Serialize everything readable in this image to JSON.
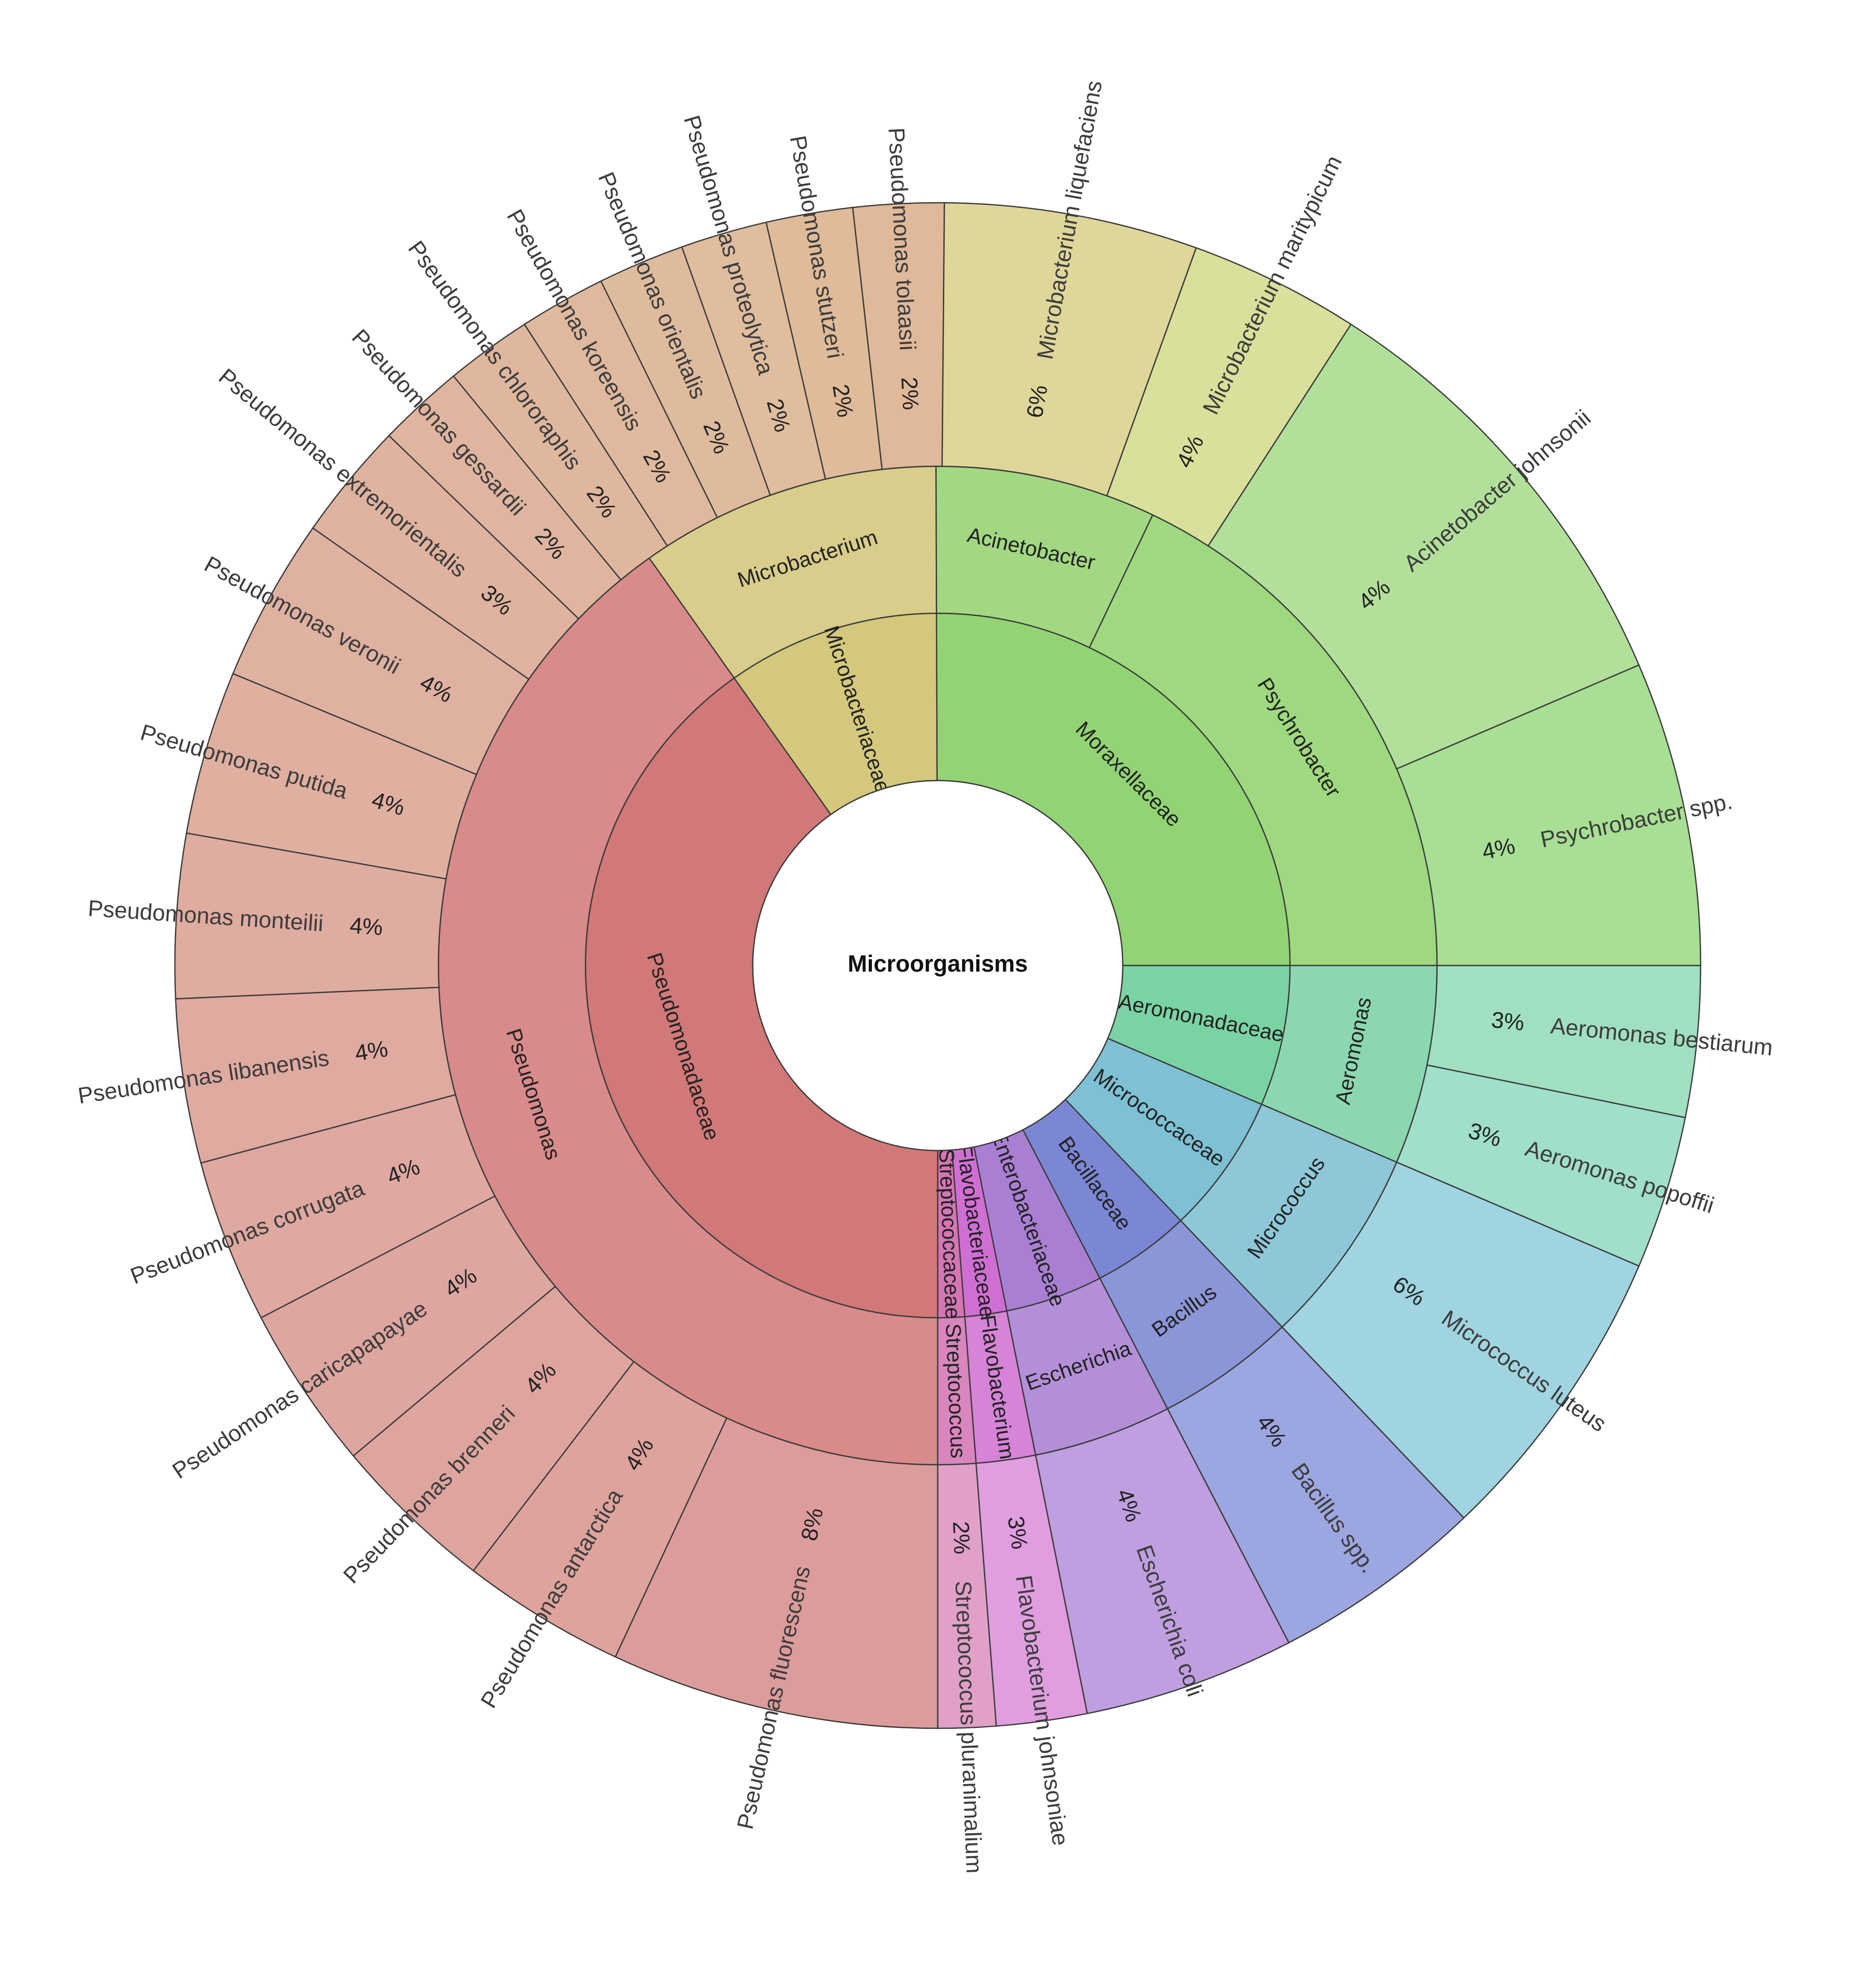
{
  "chart_data": {
    "type": "sunburst",
    "root": "Microorganisms",
    "families": [
      {
        "name": "Pseudomonadaceae",
        "label": "Pseudomonadaceae",
        "start": 180,
        "end": 324.7,
        "color": "#d17878"
      },
      {
        "name": "Microbacteriaceae",
        "label": "Microbacteriaceae",
        "start": 324.7,
        "end": 359.8,
        "color": "#d3c87c"
      },
      {
        "name": "Moraxellaceae",
        "label": "Moraxellaceae",
        "start": 359.8,
        "end": 90,
        "color": "#92d474"
      },
      {
        "name": "Aeromonadaceae",
        "label": "Aeromonadaceae",
        "start": 90,
        "end": 113.2,
        "color": "#7ad3a3"
      },
      {
        "name": "Micrococcaceae",
        "label": "Micrococcaceae",
        "start": 113.2,
        "end": 136.4,
        "color": "#7ec0d4"
      },
      {
        "name": "Bacillaceae",
        "label": "Bacillaceae",
        "start": 136.4,
        "end": 152.6,
        "color": "#7b86d4"
      },
      {
        "name": "Enterobacteriaceae",
        "label": "Enterobacteriaceae",
        "start": 152.6,
        "end": 168.7,
        "color": "#a97fd3"
      },
      {
        "name": "Flavobacteriaceae",
        "label": "Flavobacteriaceae",
        "start": 168.7,
        "end": 175.6,
        "color": "#d06fd3"
      },
      {
        "name": "Streptococcaceae",
        "label": "Streptococcaceae",
        "start": 175.6,
        "end": 180,
        "color": "#d376b3"
      }
    ],
    "genera": [
      {
        "name": "Pseudomonas",
        "label": "Pseudomonas",
        "start": 180,
        "end": 324.7,
        "color": "#d98a8a"
      },
      {
        "name": "Microbacterium",
        "label": "Microbacterium",
        "start": 324.7,
        "end": 359.8,
        "color": "#d8cd8a"
      },
      {
        "name": "Acinetobacter",
        "label": "Acinetobacter",
        "start": 359.8,
        "end": 25.5,
        "color": "#a3d883"
      },
      {
        "name": "Psychrobacter",
        "label": "Psychrobacter",
        "start": 25.5,
        "end": 90,
        "color": "#9ed87f"
      },
      {
        "name": "Aeromonas",
        "label": "Aeromonas",
        "start": 90,
        "end": 113.2,
        "color": "#8bd8b0"
      },
      {
        "name": "Micrococcus",
        "label": "Micrococcus",
        "start": 113.2,
        "end": 136.4,
        "color": "#8ec8d8"
      },
      {
        "name": "Bacillus",
        "label": "Bacillus",
        "start": 136.4,
        "end": 152.6,
        "color": "#8b96d8"
      },
      {
        "name": "Escherichia",
        "label": "Escherichia",
        "start": 152.6,
        "end": 168.7,
        "color": "#b38fd8"
      },
      {
        "name": "Flavobacterium",
        "label": "Flavobacterium",
        "start": 168.7,
        "end": 175.6,
        "color": "#d683d8"
      },
      {
        "name": "Streptococcus",
        "label": "Streptococcus",
        "start": 175.6,
        "end": 180,
        "color": "#d886bd"
      }
    ],
    "species": [
      {
        "name": "Pseudomonas fluorescens",
        "percent": "8%",
        "start": 180,
        "end": 205.0,
        "color": "#dd9c9c"
      },
      {
        "name": "Pseudomonas antarctica",
        "percent": "4%",
        "start": 205.0,
        "end": 217.5,
        "color": "#dea39c"
      },
      {
        "name": "Pseudomonas brenneri",
        "percent": "4%",
        "start": 217.5,
        "end": 230.0,
        "color": "#dea59f"
      },
      {
        "name": "Pseudomonas caricapapayae",
        "percent": "4%",
        "start": 230.0,
        "end": 242.5,
        "color": "#dea6a0"
      },
      {
        "name": "Pseudomonas corrugata",
        "percent": "4%",
        "start": 242.5,
        "end": 255.0,
        "color": "#dfa8a0"
      },
      {
        "name": "Pseudomonas libanensis",
        "percent": "4%",
        "start": 255.0,
        "end": 267.5,
        "color": "#dfaaa0"
      },
      {
        "name": "Pseudomonas monteilii",
        "percent": "4%",
        "start": 267.5,
        "end": 280.0,
        "color": "#dfaca0"
      },
      {
        "name": "Pseudomonas putida",
        "percent": "4%",
        "start": 280.0,
        "end": 292.5,
        "color": "#dfafa0"
      },
      {
        "name": "Pseudomonas veronii",
        "percent": "4%",
        "start": 292.5,
        "end": 305.0,
        "color": "#dfb1a0"
      },
      {
        "name": "Pseudomonas extremorientalis",
        "percent": "3%",
        "start": 305.0,
        "end": 314.0,
        "color": "#dfb39f"
      },
      {
        "name": "Pseudomonas gessardii",
        "percent": "2%",
        "start": 314.0,
        "end": 320.6,
        "color": "#dfb59f"
      },
      {
        "name": "Pseudomonas chlororaphis",
        "percent": "2%",
        "start": 320.6,
        "end": 327.2,
        "color": "#dfb79e"
      },
      {
        "name": "Pseudomonas koreensis",
        "percent": "2%",
        "start": 327.2,
        "end": 333.8,
        "color": "#dfb99e"
      },
      {
        "name": "Pseudomonas orientalis",
        "percent": "2%",
        "start": 333.8,
        "end": 340.4,
        "color": "#dfbb9e"
      },
      {
        "name": "Pseudomonas proteolytica",
        "percent": "2%",
        "start": 340.4,
        "end": 347.0,
        "color": "#dfbd9d"
      },
      {
        "name": "Pseudomonas stutzeri",
        "percent": "2%",
        "start": 347.0,
        "end": 353.6,
        "color": "#dfbb9a"
      },
      {
        "name": "Pseudomonas tolaasii",
        "percent": "2%",
        "start": 353.6,
        "end": 0.5,
        "color": "#dfb99a"
      },
      {
        "name": "Microbacterium liquefaciens",
        "percent": "6%",
        "start": 0.5,
        "end": 19.8,
        "color": "#dfd69a"
      },
      {
        "name": "Microbacterium maritypicum",
        "percent": "4%",
        "start": 19.8,
        "end": 32.8,
        "color": "#d8e09b"
      },
      {
        "name": "Acinetobacter johnsonii",
        "percent": "4%",
        "start": 32.8,
        "end": 66.8,
        "color": "#b2e09b"
      },
      {
        "name": "Psychrobacter spp.",
        "percent": "4%",
        "start": 66.8,
        "end": 90,
        "color": "#a7df94"
      },
      {
        "name": "Aeromonas bestiarum",
        "percent": "3%",
        "start": 90,
        "end": 101.5,
        "color": "#a0e0c0"
      },
      {
        "name": "Aeromonas popoffii",
        "percent": "3%",
        "start": 101.5,
        "end": 113.2,
        "color": "#a0dfc9"
      },
      {
        "name": "Micrococcus luteus",
        "percent": "6%",
        "start": 113.2,
        "end": 136.4,
        "color": "#a0d4e0"
      },
      {
        "name": "Bacillus spp.",
        "percent": "4%",
        "start": 136.4,
        "end": 152.6,
        "color": "#9ca6e0"
      },
      {
        "name": "Escherichia coli",
        "percent": "4%",
        "start": 152.6,
        "end": 168.7,
        "color": "#bf9fe0"
      },
      {
        "name": "Flavobacterium johnsoniae",
        "percent": "3%",
        "start": 168.7,
        "end": 175.6,
        "color": "#e09ee0"
      },
      {
        "name": "Streptococcus pluranimalium",
        "percent": "2%",
        "start": 175.6,
        "end": 180,
        "color": "#e0a0c8"
      }
    ]
  }
}
